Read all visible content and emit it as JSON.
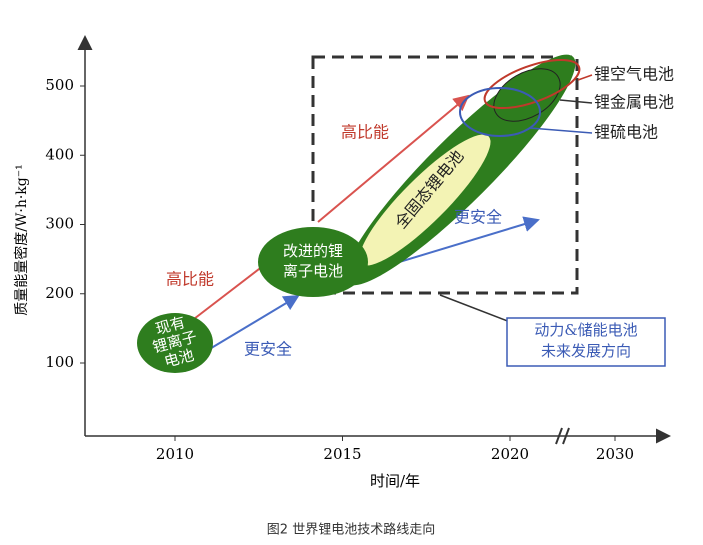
{
  "figure": {
    "y_axis_label": "质量能量密度/W·h·kg⁻¹",
    "x_axis_label": "时间/年",
    "yticks": [
      100,
      200,
      300,
      400,
      500
    ],
    "xticks": [
      2010,
      2015,
      2020,
      2030
    ],
    "nodes": [
      {
        "lines": [
          "现有",
          "锂离子",
          "电池"
        ]
      },
      {
        "lines": [
          "改进的锂",
          "离子电池"
        ]
      },
      {
        "lines": [
          "全固态锂电池"
        ]
      }
    ],
    "arrow_labels": [
      "高比能",
      "高比能",
      "更安全",
      "更安全"
    ],
    "legend_labels": [
      "锂空气电池",
      "锂金属电池",
      "锂硫电池"
    ],
    "box_label": [
      "动力&储能电池",
      "未来发展方向"
    ]
  },
  "caption": "图2 世界锂电池技术路线走向"
}
